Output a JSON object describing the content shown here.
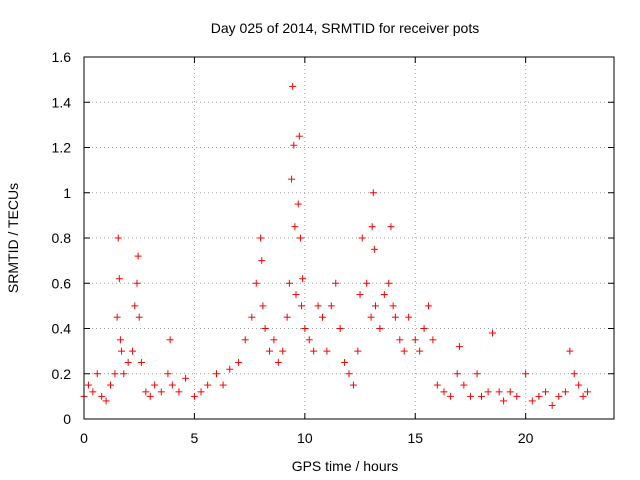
{
  "chart_data": {
    "type": "scatter",
    "title": "Day 025 of 2014, SRMTID for receiver pots",
    "xlabel": "GPS time / hours",
    "ylabel": "SRMTID / TECUs",
    "xlim": [
      0,
      24
    ],
    "ylim": [
      0,
      1.6
    ],
    "x_ticks": [
      0,
      5,
      10,
      15,
      20
    ],
    "y_ticks": [
      0,
      0.2,
      0.4,
      0.6,
      0.8,
      1,
      1.2,
      1.4,
      1.6
    ],
    "x_tick_labels": [
      "0",
      "5",
      "10",
      "15",
      "20"
    ],
    "y_tick_labels": [
      "0",
      "0.2",
      "0.4",
      "0.6",
      "0.8",
      "1",
      "1.2",
      "1.4",
      "1.6"
    ],
    "grid": true,
    "marker": "+",
    "marker_color": "#ff0000",
    "series": [
      {
        "name": "SRMTID",
        "x": [
          0.0,
          0.2,
          0.4,
          0.6,
          0.8,
          1.0,
          1.2,
          1.4,
          1.5,
          1.55,
          1.6,
          1.65,
          1.7,
          1.8,
          2.0,
          2.2,
          2.3,
          2.4,
          2.45,
          2.5,
          2.6,
          2.8,
          3.0,
          3.2,
          3.5,
          3.8,
          3.9,
          4.0,
          4.3,
          4.6,
          5.0,
          5.3,
          5.6,
          6.0,
          6.3,
          6.6,
          7.0,
          7.3,
          7.6,
          7.8,
          8.0,
          8.05,
          8.1,
          8.2,
          8.4,
          8.6,
          8.8,
          9.0,
          9.2,
          9.3,
          9.4,
          9.45,
          9.5,
          9.55,
          9.6,
          9.7,
          9.75,
          9.8,
          9.85,
          9.9,
          10.0,
          10.2,
          10.4,
          10.6,
          10.8,
          11.0,
          11.2,
          11.4,
          11.6,
          11.8,
          12.0,
          12.2,
          12.4,
          12.5,
          12.6,
          12.8,
          13.0,
          13.05,
          13.1,
          13.15,
          13.2,
          13.4,
          13.6,
          13.8,
          13.9,
          14.0,
          14.1,
          14.3,
          14.5,
          14.7,
          15.0,
          15.2,
          15.4,
          15.6,
          15.8,
          16.0,
          16.3,
          16.6,
          16.9,
          17.0,
          17.2,
          17.5,
          17.8,
          18.0,
          18.3,
          18.5,
          18.8,
          19.0,
          19.3,
          19.6,
          20.0,
          20.3,
          20.6,
          20.9,
          21.2,
          21.5,
          21.8,
          22.0,
          22.2,
          22.4,
          22.6,
          22.8
        ],
        "y": [
          0.1,
          0.15,
          0.12,
          0.2,
          0.1,
          0.08,
          0.15,
          0.2,
          0.45,
          0.8,
          0.62,
          0.35,
          0.3,
          0.2,
          0.25,
          0.3,
          0.5,
          0.6,
          0.72,
          0.45,
          0.25,
          0.12,
          0.1,
          0.15,
          0.12,
          0.2,
          0.35,
          0.15,
          0.12,
          0.18,
          0.1,
          0.12,
          0.15,
          0.2,
          0.15,
          0.22,
          0.25,
          0.35,
          0.45,
          0.6,
          0.8,
          0.7,
          0.5,
          0.4,
          0.3,
          0.35,
          0.25,
          0.3,
          0.45,
          0.6,
          1.06,
          1.47,
          1.21,
          0.85,
          0.55,
          0.95,
          1.25,
          0.8,
          0.5,
          0.62,
          0.4,
          0.35,
          0.3,
          0.5,
          0.45,
          0.3,
          0.5,
          0.6,
          0.4,
          0.25,
          0.2,
          0.15,
          0.3,
          0.55,
          0.8,
          0.6,
          0.45,
          0.85,
          1.0,
          0.75,
          0.5,
          0.4,
          0.55,
          0.6,
          0.85,
          0.5,
          0.45,
          0.35,
          0.3,
          0.45,
          0.35,
          0.3,
          0.4,
          0.5,
          0.35,
          0.15,
          0.12,
          0.1,
          0.2,
          0.32,
          0.15,
          0.1,
          0.2,
          0.1,
          0.12,
          0.38,
          0.12,
          0.08,
          0.12,
          0.1,
          0.2,
          0.08,
          0.1,
          0.12,
          0.06,
          0.1,
          0.12,
          0.3,
          0.2,
          0.15,
          0.1,
          0.12
        ]
      }
    ]
  }
}
